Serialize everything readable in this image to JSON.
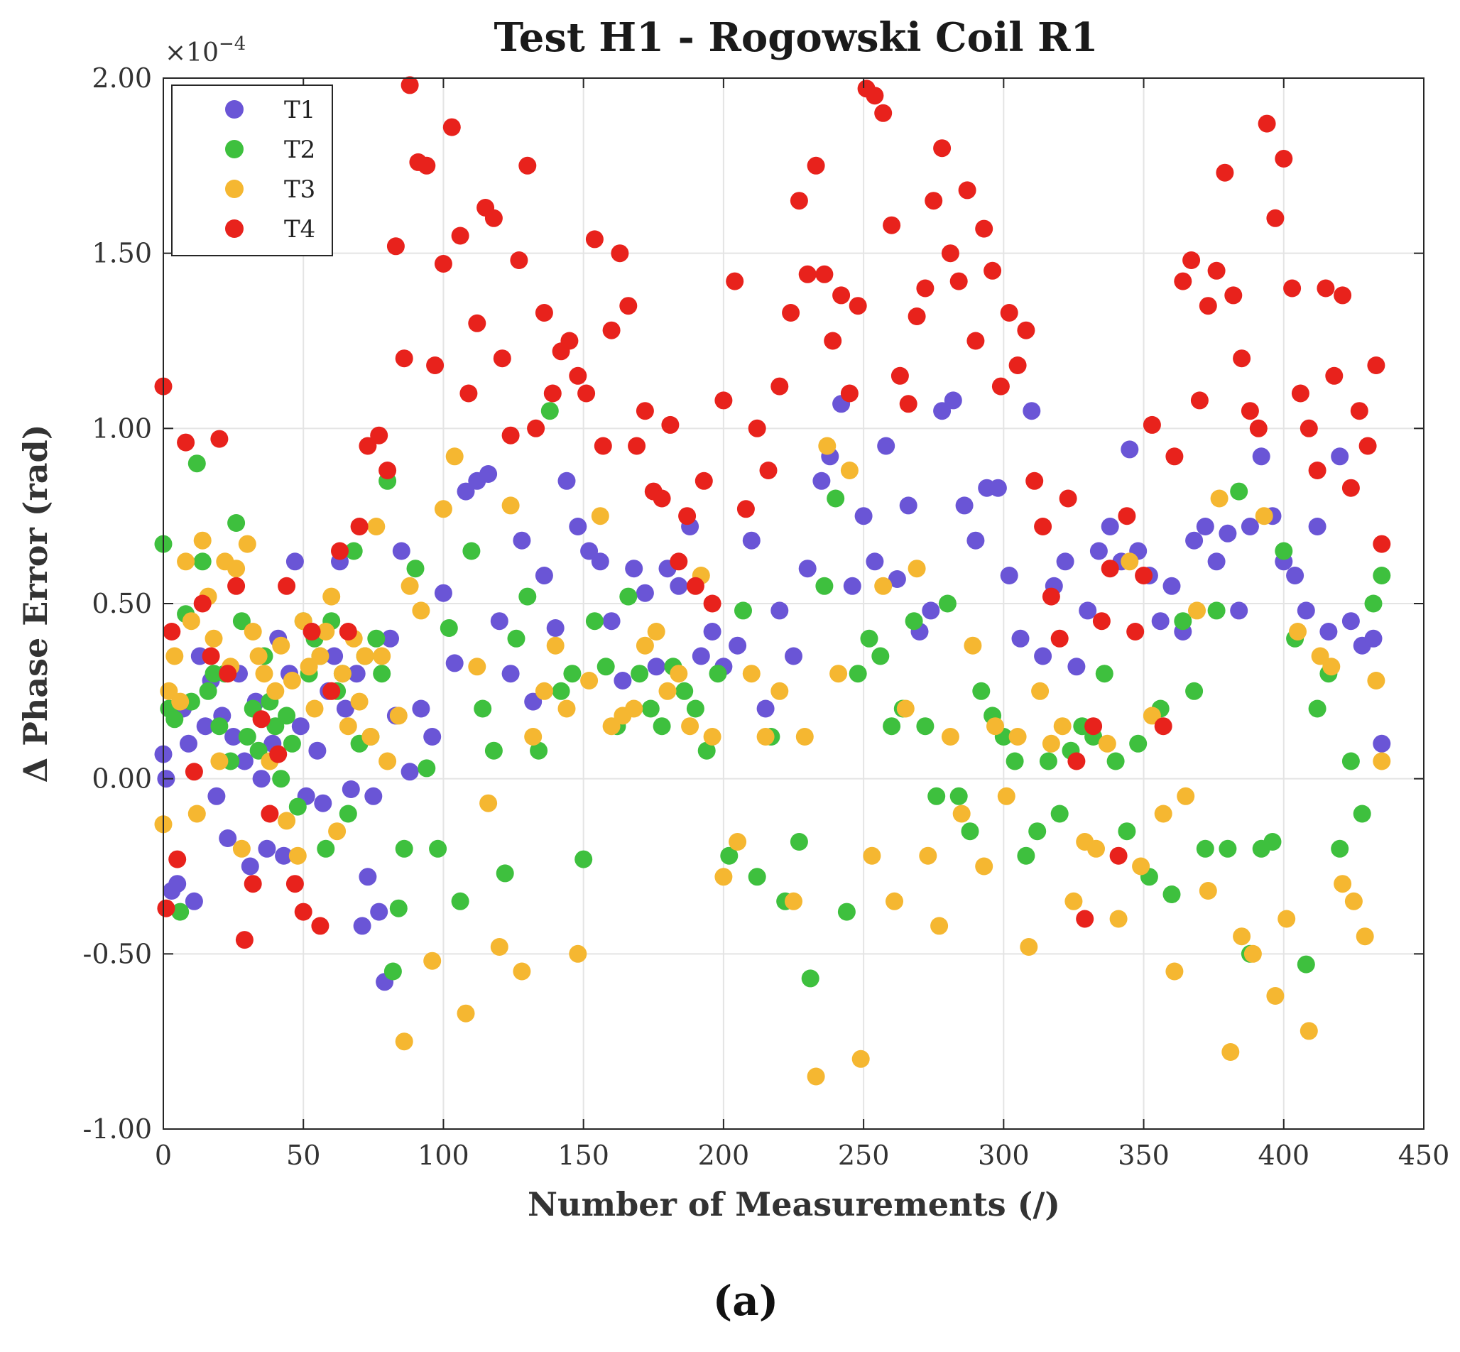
{
  "chart_data": {
    "type": "scatter",
    "title": "Test H1 - Rogowski Coil R1",
    "xlabel": "Number of Measurements (/)",
    "ylabel": "Δ Phase Error (rad)",
    "y_exponent_label": "×10",
    "y_exponent_power": "−4",
    "panel_label": "(a)",
    "xlim": [
      0,
      450
    ],
    "ylim": [
      -1.0,
      2.0
    ],
    "x_ticks": [
      0,
      50,
      100,
      150,
      200,
      250,
      300,
      350,
      400,
      450
    ],
    "x_tick_labels": [
      "0",
      "50",
      "100",
      "150",
      "200",
      "250",
      "300",
      "350",
      "400",
      "450"
    ],
    "y_ticks": [
      -1.0,
      -0.5,
      0.0,
      0.5,
      1.0,
      1.5,
      2.0
    ],
    "y_tick_labels": [
      "-1.00",
      "-0.50",
      "0.00",
      "0.50",
      "1.00",
      "1.50",
      "2.00"
    ],
    "grid": true,
    "legend_position": "top-left",
    "series": [
      {
        "name": "T1",
        "color": "#6a55d6",
        "x": [
          0,
          1,
          3,
          5,
          7,
          9,
          11,
          13,
          15,
          17,
          19,
          21,
          23,
          25,
          27,
          29,
          31,
          33,
          35,
          37,
          39,
          41,
          43,
          45,
          47,
          49,
          51,
          53,
          55,
          57,
          59,
          61,
          63,
          65,
          67,
          69,
          71,
          73,
          75,
          77,
          79,
          81,
          83,
          85,
          88,
          92,
          96,
          100,
          104,
          108,
          112,
          116,
          120,
          124,
          128,
          132,
          136,
          140,
          144,
          148,
          152,
          156,
          160,
          164,
          168,
          172,
          176,
          180,
          184,
          188,
          192,
          196,
          200,
          205,
          210,
          215,
          220,
          225,
          230,
          235,
          238,
          242,
          246,
          250,
          254,
          258,
          262,
          266,
          270,
          274,
          278,
          282,
          286,
          290,
          294,
          298,
          302,
          306,
          310,
          314,
          318,
          322,
          326,
          330,
          334,
          338,
          342,
          345,
          348,
          352,
          356,
          360,
          364,
          368,
          372,
          376,
          380,
          384,
          388,
          392,
          396,
          400,
          404,
          408,
          412,
          416,
          420,
          424,
          428,
          432,
          435
        ],
        "y": [
          0.07,
          0.0,
          -0.32,
          -0.3,
          0.2,
          0.1,
          -0.35,
          0.35,
          0.15,
          0.28,
          -0.05,
          0.18,
          -0.17,
          0.12,
          0.3,
          0.05,
          -0.25,
          0.22,
          0.0,
          -0.2,
          0.1,
          0.4,
          -0.22,
          0.3,
          0.62,
          0.15,
          -0.05,
          0.42,
          0.08,
          -0.07,
          0.25,
          0.35,
          0.62,
          0.2,
          -0.03,
          0.3,
          -0.42,
          -0.28,
          -0.05,
          -0.38,
          -0.58,
          0.4,
          0.18,
          0.65,
          0.02,
          0.2,
          0.12,
          0.53,
          0.33,
          0.82,
          0.85,
          0.87,
          0.45,
          0.3,
          0.68,
          0.22,
          0.58,
          0.43,
          0.85,
          0.72,
          0.65,
          0.62,
          0.45,
          0.28,
          0.6,
          0.53,
          0.32,
          0.6,
          0.55,
          0.72,
          0.35,
          0.42,
          0.32,
          0.38,
          0.68,
          0.2,
          0.48,
          0.35,
          0.6,
          0.85,
          0.92,
          1.07,
          0.55,
          0.75,
          0.62,
          0.95,
          0.57,
          0.78,
          0.42,
          0.48,
          1.05,
          1.08,
          0.78,
          0.68,
          0.83,
          0.83,
          0.58,
          0.4,
          1.05,
          0.35,
          0.55,
          0.62,
          0.32,
          0.48,
          0.65,
          0.72,
          0.62,
          0.94,
          0.65,
          0.58,
          0.45,
          0.55,
          0.42,
          0.68,
          0.72,
          0.62,
          0.7,
          0.48,
          0.72,
          0.92,
          0.75,
          0.62,
          0.58,
          0.48,
          0.72,
          0.42,
          0.92,
          0.45,
          0.38,
          0.4,
          0.1
        ],
        "z_note": "points scattered across measurement index"
      },
      {
        "name": "T2",
        "color": "#3ec03e",
        "x": [
          0,
          2,
          4,
          6,
          8,
          10,
          12,
          14,
          16,
          18,
          20,
          22,
          24,
          26,
          28,
          30,
          32,
          34,
          36,
          38,
          40,
          42,
          44,
          46,
          48,
          50,
          52,
          54,
          56,
          58,
          60,
          62,
          64,
          66,
          68,
          70,
          72,
          74,
          76,
          78,
          80,
          82,
          84,
          86,
          90,
          94,
          98,
          102,
          106,
          110,
          114,
          118,
          122,
          126,
          130,
          134,
          138,
          142,
          146,
          150,
          154,
          158,
          162,
          166,
          170,
          174,
          178,
          182,
          186,
          190,
          194,
          198,
          202,
          207,
          212,
          217,
          222,
          227,
          231,
          236,
          240,
          244,
          248,
          252,
          256,
          260,
          264,
          268,
          272,
          276,
          280,
          284,
          288,
          292,
          296,
          300,
          304,
          308,
          312,
          316,
          320,
          324,
          328,
          332,
          336,
          340,
          344,
          348,
          352,
          356,
          360,
          364,
          368,
          372,
          376,
          380,
          384,
          388,
          392,
          396,
          400,
          404,
          408,
          412,
          416,
          420,
          424,
          428,
          432,
          435
        ],
        "y": [
          0.67,
          0.2,
          0.17,
          -0.38,
          0.47,
          0.22,
          0.9,
          0.62,
          0.25,
          0.3,
          0.15,
          0.3,
          0.05,
          0.73,
          0.45,
          0.12,
          0.2,
          0.08,
          0.35,
          0.22,
          0.15,
          0.0,
          0.18,
          0.1,
          -0.08,
          0.45,
          0.3,
          0.4,
          0.35,
          -0.2,
          0.45,
          0.25,
          0.3,
          -0.1,
          0.65,
          0.1,
          0.35,
          0.12,
          0.4,
          0.3,
          0.85,
          -0.55,
          -0.37,
          -0.2,
          0.6,
          0.03,
          -0.2,
          0.43,
          -0.35,
          0.65,
          0.2,
          0.08,
          -0.27,
          0.4,
          0.52,
          0.08,
          1.05,
          0.25,
          0.3,
          -0.23,
          0.45,
          0.32,
          0.15,
          0.52,
          0.3,
          0.2,
          0.15,
          0.32,
          0.25,
          0.2,
          0.08,
          0.3,
          -0.22,
          0.48,
          -0.28,
          0.12,
          -0.35,
          -0.18,
          -0.57,
          0.55,
          0.8,
          -0.38,
          0.3,
          0.4,
          0.35,
          0.15,
          0.2,
          0.45,
          0.15,
          -0.05,
          0.5,
          -0.05,
          -0.15,
          0.25,
          0.18,
          0.12,
          0.05,
          -0.22,
          -0.15,
          0.05,
          -0.1,
          0.08,
          0.15,
          0.12,
          0.3,
          0.05,
          -0.15,
          0.1,
          -0.28,
          0.2,
          -0.33,
          0.45,
          0.25,
          -0.2,
          0.48,
          -0.2,
          0.82,
          -0.5,
          -0.2,
          -0.18,
          0.65,
          0.4,
          -0.53,
          0.2,
          0.3,
          -0.2,
          0.05,
          -0.1,
          0.5,
          0.58
        ],
        "z_note": "points scattered across measurement index"
      },
      {
        "name": "T3",
        "color": "#f5b731",
        "x": [
          0,
          2,
          4,
          6,
          8,
          10,
          12,
          14,
          16,
          18,
          20,
          22,
          24,
          26,
          28,
          30,
          32,
          34,
          36,
          38,
          40,
          42,
          44,
          46,
          48,
          50,
          52,
          54,
          56,
          58,
          60,
          62,
          64,
          66,
          68,
          70,
          72,
          74,
          76,
          78,
          80,
          84,
          86,
          88,
          92,
          96,
          100,
          104,
          108,
          112,
          116,
          120,
          124,
          128,
          132,
          136,
          140,
          144,
          148,
          152,
          156,
          160,
          164,
          168,
          172,
          176,
          180,
          184,
          188,
          192,
          196,
          200,
          205,
          210,
          215,
          220,
          225,
          229,
          233,
          237,
          241,
          245,
          249,
          253,
          257,
          261,
          265,
          269,
          273,
          277,
          281,
          285,
          289,
          293,
          297,
          301,
          305,
          309,
          313,
          317,
          321,
          325,
          329,
          333,
          337,
          341,
          345,
          349,
          353,
          357,
          361,
          365,
          369,
          373,
          377,
          381,
          385,
          389,
          393,
          397,
          401,
          405,
          409,
          413,
          417,
          421,
          425,
          429,
          433,
          435
        ],
        "y": [
          -0.13,
          0.25,
          0.35,
          0.22,
          0.62,
          0.45,
          -0.1,
          0.68,
          0.52,
          0.4,
          0.05,
          0.62,
          0.32,
          0.6,
          -0.2,
          0.67,
          0.42,
          0.35,
          0.3,
          0.05,
          0.25,
          0.38,
          -0.12,
          0.28,
          -0.22,
          0.45,
          0.32,
          0.2,
          0.35,
          0.42,
          0.52,
          -0.15,
          0.3,
          0.15,
          0.4,
          0.22,
          0.35,
          0.12,
          0.72,
          0.35,
          0.05,
          0.18,
          -0.75,
          0.55,
          0.48,
          -0.52,
          0.77,
          0.92,
          -0.67,
          0.32,
          -0.07,
          -0.48,
          0.78,
          -0.55,
          0.12,
          0.25,
          0.38,
          0.2,
          -0.5,
          0.28,
          0.75,
          0.15,
          0.18,
          0.2,
          0.38,
          0.42,
          0.25,
          0.3,
          0.15,
          0.58,
          0.12,
          -0.28,
          -0.18,
          0.3,
          0.12,
          0.25,
          -0.35,
          0.12,
          -0.85,
          0.95,
          0.3,
          0.88,
          -0.8,
          -0.22,
          0.55,
          -0.35,
          0.2,
          0.6,
          -0.22,
          -0.42,
          0.12,
          -0.1,
          0.38,
          -0.25,
          0.15,
          -0.05,
          0.12,
          -0.48,
          0.25,
          0.1,
          0.15,
          -0.35,
          -0.18,
          -0.2,
          0.1,
          -0.4,
          0.62,
          -0.25,
          0.18,
          -0.1,
          -0.55,
          -0.05,
          0.48,
          -0.32,
          0.8,
          -0.78,
          -0.45,
          -0.5,
          0.75,
          -0.62,
          -0.4,
          0.42,
          -0.72,
          0.35,
          0.32,
          -0.3,
          -0.35,
          -0.45,
          0.28,
          0.05
        ],
        "z_note": "points scattered across measurement index"
      },
      {
        "name": "T4",
        "color": "#e8221c",
        "x": [
          0,
          1,
          3,
          5,
          8,
          11,
          14,
          17,
          20,
          23,
          26,
          29,
          32,
          35,
          38,
          41,
          44,
          47,
          50,
          53,
          56,
          60,
          63,
          66,
          70,
          73,
          77,
          80,
          83,
          86,
          88,
          91,
          94,
          97,
          100,
          103,
          106,
          109,
          112,
          115,
          118,
          121,
          124,
          127,
          130,
          133,
          136,
          139,
          142,
          145,
          148,
          151,
          154,
          157,
          160,
          163,
          166,
          169,
          172,
          175,
          178,
          181,
          184,
          187,
          190,
          193,
          196,
          200,
          204,
          208,
          212,
          216,
          220,
          224,
          227,
          230,
          233,
          236,
          239,
          242,
          245,
          248,
          251,
          254,
          257,
          260,
          263,
          266,
          269,
          272,
          275,
          278,
          281,
          284,
          287,
          290,
          293,
          296,
          299,
          302,
          305,
          308,
          311,
          314,
          317,
          320,
          323,
          326,
          329,
          332,
          335,
          338,
          341,
          344,
          347,
          350,
          353,
          357,
          361,
          364,
          367,
          370,
          373,
          376,
          379,
          382,
          385,
          388,
          391,
          394,
          397,
          400,
          403,
          406,
          409,
          412,
          415,
          418,
          421,
          424,
          427,
          430,
          433,
          435
        ],
        "y": [
          1.12,
          -0.37,
          0.42,
          -0.23,
          0.96,
          0.02,
          0.5,
          0.35,
          0.97,
          0.3,
          0.55,
          -0.46,
          -0.3,
          0.17,
          -0.1,
          0.07,
          0.55,
          -0.3,
          -0.38,
          0.42,
          -0.42,
          0.25,
          0.65,
          0.42,
          0.72,
          0.95,
          0.98,
          0.88,
          1.52,
          1.2,
          1.98,
          1.76,
          1.75,
          1.18,
          1.47,
          1.86,
          1.55,
          1.1,
          1.3,
          1.63,
          1.6,
          1.2,
          0.98,
          1.48,
          1.75,
          1.0,
          1.33,
          1.1,
          1.22,
          1.25,
          1.15,
          1.1,
          1.54,
          0.95,
          1.28,
          1.5,
          1.35,
          0.95,
          1.05,
          0.82,
          0.8,
          1.01,
          0.62,
          0.75,
          0.55,
          0.85,
          0.5,
          1.08,
          1.42,
          0.77,
          1.0,
          0.88,
          1.12,
          1.33,
          1.65,
          1.44,
          1.75,
          1.44,
          1.25,
          1.38,
          1.1,
          1.35,
          1.97,
          1.95,
          1.9,
          1.58,
          1.15,
          1.07,
          1.32,
          1.4,
          1.65,
          1.8,
          1.5,
          1.42,
          1.68,
          1.25,
          1.57,
          1.45,
          1.12,
          1.33,
          1.18,
          1.28,
          0.85,
          0.72,
          0.52,
          0.4,
          0.8,
          0.05,
          -0.4,
          0.15,
          0.45,
          0.6,
          -0.22,
          0.75,
          0.42,
          0.58,
          1.01,
          0.15,
          0.92,
          1.42,
          1.48,
          1.08,
          1.35,
          1.45,
          1.73,
          1.38,
          1.2,
          1.05,
          1.0,
          1.87,
          1.6,
          1.77,
          1.4,
          1.1,
          1.0,
          0.88,
          1.4,
          1.15,
          1.38,
          0.83,
          1.05,
          0.95,
          1.18,
          0.67
        ],
        "z_note": "points scattered across measurement index"
      }
    ]
  }
}
